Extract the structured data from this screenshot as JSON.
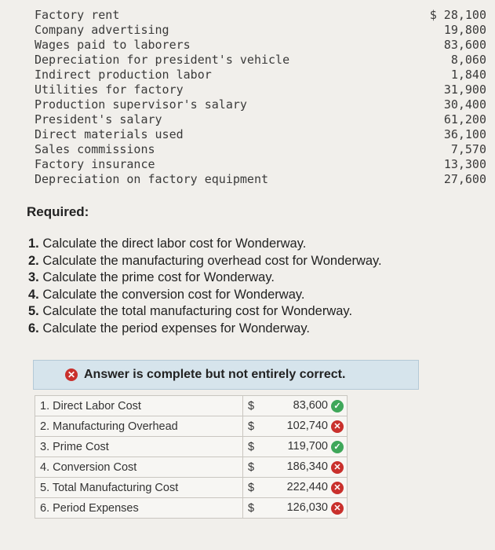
{
  "cost_items": [
    {
      "label": "Factory rent",
      "value": "$ 28,100"
    },
    {
      "label": "Company advertising",
      "value": "19,800"
    },
    {
      "label": "Wages paid to laborers",
      "value": "83,600"
    },
    {
      "label": "Depreciation for president's vehicle",
      "value": "8,060"
    },
    {
      "label": "Indirect production labor",
      "value": "1,840"
    },
    {
      "label": "Utilities for factory",
      "value": "31,900"
    },
    {
      "label": "Production supervisor's salary",
      "value": "30,400"
    },
    {
      "label": "President's salary",
      "value": "61,200"
    },
    {
      "label": "Direct materials used",
      "value": "36,100"
    },
    {
      "label": "Sales commissions",
      "value": "7,570"
    },
    {
      "label": "Factory insurance",
      "value": "13,300"
    },
    {
      "label": "Depreciation on factory equipment",
      "value": "27,600"
    }
  ],
  "required": {
    "heading": "Required:",
    "questions": [
      {
        "num": "1.",
        "text": "Calculate the direct labor cost for Wonderway."
      },
      {
        "num": "2.",
        "text": "Calculate the manufacturing overhead cost for Wonderway."
      },
      {
        "num": "3.",
        "text": "Calculate the prime cost for Wonderway."
      },
      {
        "num": "4.",
        "text": "Calculate the conversion cost for Wonderway."
      },
      {
        "num": "5.",
        "text": "Calculate the total manufacturing cost for Wonderway."
      },
      {
        "num": "6.",
        "text": "Calculate the period expenses for Wonderway."
      }
    ]
  },
  "banner": {
    "icon": "x-circle-icon",
    "text": "Answer is complete but not entirely correct."
  },
  "answers": [
    {
      "label": "1. Direct Labor Cost",
      "currency": "$",
      "amount": "83,600",
      "status": "correct"
    },
    {
      "label": "2. Manufacturing Overhead",
      "currency": "$",
      "amount": "102,740",
      "status": "incorrect"
    },
    {
      "label": "3. Prime Cost",
      "currency": "$",
      "amount": "119,700",
      "status": "correct"
    },
    {
      "label": "4. Conversion Cost",
      "currency": "$",
      "amount": "186,340",
      "status": "incorrect"
    },
    {
      "label": "5. Total Manufacturing Cost",
      "currency": "$",
      "amount": "222,440",
      "status": "incorrect"
    },
    {
      "label": "6. Period Expenses",
      "currency": "$",
      "amount": "126,030",
      "status": "incorrect"
    }
  ],
  "colors": {
    "correct": "#3fa75a",
    "incorrect": "#c9302c",
    "banner_bg": "#d6e4ec"
  }
}
